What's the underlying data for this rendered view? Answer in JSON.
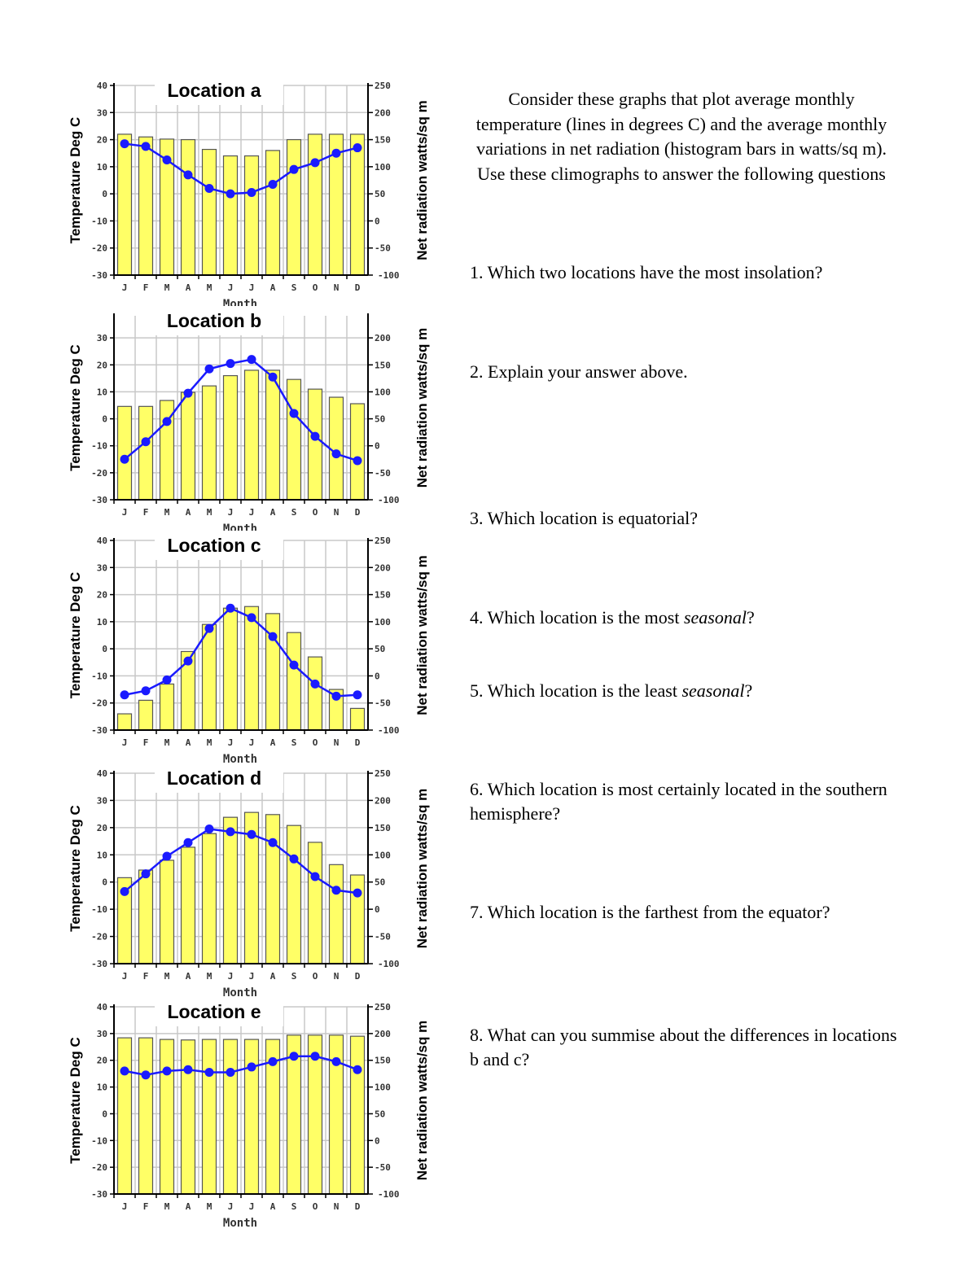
{
  "intro": "Consider these graphs that plot average monthly temperature (lines in degrees C) and the average monthly variations in net radiation (histogram bars in watts/sq m). Use these climographs to answer the following questions",
  "questions": [
    {
      "text": "1. Which two locations have the most insolation?"
    },
    {
      "text": "2. Explain your answer above."
    },
    {
      "text": "3. Which location is equatorial?"
    },
    {
      "pre": "4. Which location is the most ",
      "em": "seasonal",
      "post": "?"
    },
    {
      "pre": "5. Which location is the least ",
      "em": "seasonal",
      "post": "?"
    },
    {
      "text": "6. Which location is most certainly located in the southern hemisphere?"
    },
    {
      "text": "7. Which location is the farthest from the equator?"
    },
    {
      "text": "8. What can you summise about the differences in locations b and c?"
    }
  ],
  "colors": {
    "bar": "#ffff66",
    "bar_outline": "#555555",
    "line": "#1a1aff",
    "grid": "#c8c8c8"
  },
  "chart_data": [
    {
      "type": "bar+line",
      "title": "Location a",
      "xlabel": "Month",
      "ylabel_left": "Temperature Deg C",
      "ylabel_right": "Net radiation watts/sq m",
      "categories": [
        "J",
        "F",
        "M",
        "A",
        "M",
        "J",
        "J",
        "A",
        "S",
        "O",
        "N",
        "D"
      ],
      "ylim_left": [
        -30,
        40
      ],
      "ylim_right": [
        -100,
        250
      ],
      "yticks_left": [
        -30,
        -20,
        -10,
        0,
        10,
        20,
        30,
        40
      ],
      "yticks_right": [
        -100,
        -50,
        0,
        50,
        100,
        150,
        200,
        250
      ],
      "grid": true,
      "temperature": [
        18.5,
        17.5,
        12.5,
        7,
        2,
        0,
        0.5,
        3.5,
        9,
        11.5,
        15,
        17
      ],
      "net_radiation": [
        160,
        155,
        151,
        150,
        132,
        120,
        120,
        130,
        150,
        160,
        160,
        160
      ]
    },
    {
      "type": "bar+line",
      "title": "Location b",
      "xlabel": "Month",
      "ylabel_left": "Temperature Deg C",
      "ylabel_right": "Net radiation watts/sq m",
      "categories": [
        "J",
        "F",
        "M",
        "A",
        "M",
        "J",
        "J",
        "A",
        "S",
        "O",
        "N",
        "D"
      ],
      "ylim_left": [
        -30,
        38
      ],
      "ylim_right": [
        -100,
        240
      ],
      "yticks_left": [
        -30,
        -20,
        -10,
        0,
        10,
        20,
        30
      ],
      "yticks_right": [
        -100,
        -50,
        0,
        50,
        100,
        150,
        200
      ],
      "grid": true,
      "temperature": [
        -15,
        -8.5,
        -1,
        9.5,
        18.5,
        20.5,
        22,
        15.5,
        2,
        -6.5,
        -13,
        -15.5
      ],
      "net_radiation": [
        73,
        73,
        84,
        99,
        111,
        130,
        140,
        140,
        123,
        105,
        90,
        78
      ]
    },
    {
      "type": "bar+line",
      "title": "Location c",
      "xlabel": "Month",
      "ylabel_left": "Temperature Deg C",
      "ylabel_right": "Net radiation watts/sq m",
      "categories": [
        "J",
        "F",
        "M",
        "A",
        "M",
        "J",
        "J",
        "A",
        "S",
        "O",
        "N",
        "D"
      ],
      "ylim_left": [
        -30,
        40
      ],
      "ylim_right": [
        -100,
        250
      ],
      "yticks_left": [
        -30,
        -20,
        -10,
        0,
        10,
        20,
        30,
        40
      ],
      "yticks_right": [
        -100,
        -50,
        0,
        50,
        100,
        150,
        200,
        250
      ],
      "grid": true,
      "temperature": [
        -17,
        -15.5,
        -11.5,
        -4.5,
        7.5,
        15,
        11.5,
        4.5,
        -6,
        -13,
        -17.5,
        -17
      ],
      "net_radiation": [
        -70,
        -45,
        -15,
        45,
        95,
        125,
        128,
        115,
        80,
        35,
        -25,
        -60
      ]
    },
    {
      "type": "bar+line",
      "title": "Location d",
      "xlabel": "Month",
      "ylabel_left": "Temperature Deg C",
      "ylabel_right": "Net radiation watts/sq m",
      "categories": [
        "J",
        "F",
        "M",
        "A",
        "M",
        "J",
        "J",
        "A",
        "S",
        "O",
        "N",
        "D"
      ],
      "ylim_left": [
        -30,
        40
      ],
      "ylim_right": [
        -100,
        250
      ],
      "yticks_left": [
        -30,
        -20,
        -10,
        0,
        10,
        20,
        30,
        40
      ],
      "yticks_right": [
        -100,
        -50,
        0,
        50,
        100,
        150,
        200,
        250
      ],
      "grid": true,
      "temperature": [
        -3.5,
        3,
        9.5,
        14.5,
        19.5,
        18.5,
        17.5,
        14.5,
        8.5,
        2,
        -3,
        -4
      ],
      "net_radiation": [
        58,
        72,
        90,
        114,
        139,
        169,
        178,
        174,
        154,
        123,
        82,
        63
      ]
    },
    {
      "type": "bar+line",
      "title": "Location e",
      "xlabel": "Month",
      "ylabel_left": "Temperature Deg C",
      "ylabel_right": "Net radiation watts/sq m",
      "categories": [
        "J",
        "F",
        "M",
        "A",
        "M",
        "J",
        "J",
        "A",
        "S",
        "O",
        "N",
        "D"
      ],
      "ylim_left": [
        -30,
        40
      ],
      "ylim_right": [
        -100,
        250
      ],
      "yticks_left": [
        -30,
        -20,
        -10,
        0,
        10,
        20,
        30,
        40
      ],
      "yticks_right": [
        -100,
        -50,
        0,
        50,
        100,
        150,
        200,
        250
      ],
      "grid": true,
      "temperature": [
        16,
        14.5,
        16,
        16.5,
        15.5,
        15.5,
        17.5,
        19.5,
        21.5,
        21.5,
        19.5,
        16.5
      ],
      "net_radiation": [
        192,
        192,
        189,
        188,
        189,
        189,
        189,
        189,
        197,
        197,
        197,
        195
      ]
    }
  ]
}
